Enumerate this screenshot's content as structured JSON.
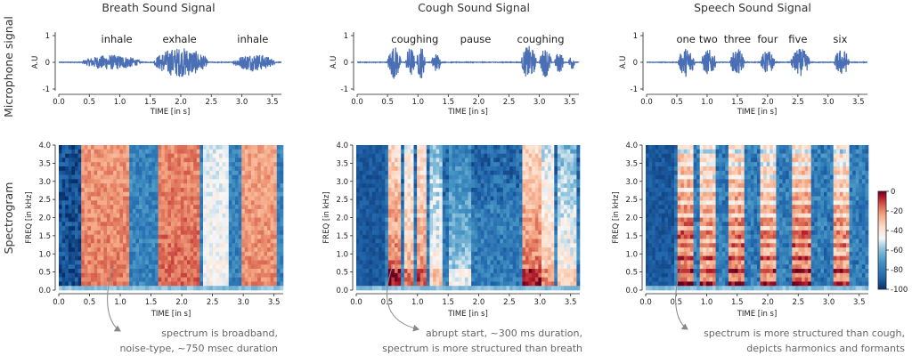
{
  "row_labels": [
    "Microphone signal",
    "Spectrogram"
  ],
  "chart_data": [
    {
      "type": "line",
      "title": "Breath Sound Signal",
      "xlabel": "TIME [in s]",
      "ylabel": "A.U",
      "xlim": [
        0,
        3.65
      ],
      "ylim": [
        -1,
        1
      ],
      "xticks": [
        "0.0",
        "0.5",
        "1.0",
        "1.5",
        "2.0",
        "2.5",
        "3.0",
        "3.5"
      ],
      "yticks": [
        "1",
        "0",
        "-1"
      ],
      "event_labels": [
        {
          "text": "inhale",
          "t": 0.95
        },
        {
          "text": "exhale",
          "t": 1.98
        },
        {
          "text": "inhale",
          "t": 3.18
        }
      ],
      "bursts": [
        {
          "start": 0.38,
          "end": 1.35,
          "amp": 0.28
        },
        {
          "start": 1.55,
          "end": 2.45,
          "amp": 0.55
        },
        {
          "start": 2.85,
          "end": 3.55,
          "amp": 0.32
        }
      ]
    },
    {
      "type": "line",
      "title": "Cough Sound Signal",
      "xlabel": "TIME [in s]",
      "ylabel": "A.U",
      "xlim": [
        0,
        3.65
      ],
      "ylim": [
        -1,
        1
      ],
      "xticks": [
        "0.0",
        "0.5",
        "1.0",
        "1.5",
        "2.0",
        "2.5",
        "3.0",
        "3.5"
      ],
      "yticks": [
        "1",
        "0",
        "-1"
      ],
      "event_labels": [
        {
          "text": "coughing",
          "t": 0.95
        },
        {
          "text": "pause",
          "t": 1.95
        },
        {
          "text": "coughing",
          "t": 3.02
        }
      ],
      "bursts": [
        {
          "start": 0.5,
          "end": 0.72,
          "amp": 0.62
        },
        {
          "start": 0.8,
          "end": 0.95,
          "amp": 0.58
        },
        {
          "start": 0.98,
          "end": 1.12,
          "amp": 0.62
        },
        {
          "start": 1.22,
          "end": 1.38,
          "amp": 0.35
        },
        {
          "start": 2.7,
          "end": 2.95,
          "amp": 0.62
        },
        {
          "start": 3.0,
          "end": 3.2,
          "amp": 0.55
        },
        {
          "start": 3.25,
          "end": 3.4,
          "amp": 0.4
        },
        {
          "start": 3.48,
          "end": 3.58,
          "amp": 0.3
        }
      ]
    },
    {
      "type": "line",
      "title": "Speech Sound Signal",
      "xlabel": "TIME [in s]",
      "ylabel": "A.U",
      "xlim": [
        0,
        3.65
      ],
      "ylim": [
        -1,
        1
      ],
      "xticks": [
        "0.0",
        "0.5",
        "1.0",
        "1.5",
        "2.0",
        "2.5",
        "3.0",
        "3.5"
      ],
      "yticks": [
        "1",
        "0",
        "-1"
      ],
      "event_labels": [
        {
          "text": "one",
          "t": 0.65
        },
        {
          "text": "two",
          "t": 1.02
        },
        {
          "text": "three",
          "t": 1.5
        },
        {
          "text": "four",
          "t": 2.0
        },
        {
          "text": "five",
          "t": 2.5
        },
        {
          "text": "six",
          "t": 3.2
        }
      ],
      "bursts": [
        {
          "start": 0.52,
          "end": 0.8,
          "amp": 0.55
        },
        {
          "start": 0.9,
          "end": 1.15,
          "amp": 0.48
        },
        {
          "start": 1.38,
          "end": 1.62,
          "amp": 0.5
        },
        {
          "start": 1.88,
          "end": 2.12,
          "amp": 0.45
        },
        {
          "start": 2.38,
          "end": 2.7,
          "amp": 0.52
        },
        {
          "start": 3.1,
          "end": 3.35,
          "amp": 0.5
        }
      ]
    },
    {
      "type": "heatmap",
      "xlabel": "TIME [in s]",
      "ylabel": "FREQ [in kHz]",
      "xlim": [
        0,
        3.65
      ],
      "ylim": [
        0,
        4
      ],
      "xticks": [
        "0.0",
        "0.5",
        "1.0",
        "1.5",
        "2.0",
        "2.5",
        "3.0",
        "3.5"
      ],
      "yticks": [
        "4.0",
        "3.5",
        "3.0",
        "2.5",
        "2.0",
        "1.5",
        "1.0",
        "0.5",
        "0.0"
      ],
      "annotation": [
        "spectrum is broadband,",
        "noise-type, ~750 msec duration"
      ],
      "active": [
        {
          "start": 0.38,
          "end": 1.15,
          "level": 0.82
        },
        {
          "start": 1.6,
          "end": 2.3,
          "level": 0.85
        },
        {
          "start": 2.35,
          "end": 2.75,
          "level": 0.55
        },
        {
          "start": 2.95,
          "end": 3.55,
          "level": 0.8
        }
      ],
      "style": "broadband"
    },
    {
      "type": "heatmap",
      "xlabel": "TIME [in s]",
      "ylabel": "FREQ [in kHz]",
      "xlim": [
        0,
        3.65
      ],
      "ylim": [
        0,
        4
      ],
      "xticks": [
        "0.0",
        "0.5",
        "1.0",
        "1.5",
        "2.0",
        "2.5",
        "3.0",
        "3.5"
      ],
      "yticks": [
        "4.0",
        "3.5",
        "3.0",
        "2.5",
        "2.0",
        "1.5",
        "1.0",
        "0.5",
        "0.0"
      ],
      "annotation": [
        "abrupt start, ~300 ms duration,",
        "spectrum is more structured than breath"
      ],
      "active": [
        {
          "start": 0.5,
          "end": 0.75,
          "level": 0.85
        },
        {
          "start": 0.8,
          "end": 0.95,
          "level": 0.75
        },
        {
          "start": 0.98,
          "end": 1.15,
          "level": 0.8
        },
        {
          "start": 1.2,
          "end": 1.4,
          "level": 0.6
        },
        {
          "start": 1.5,
          "end": 1.9,
          "level": 0.45
        },
        {
          "start": 2.7,
          "end": 3.0,
          "level": 0.85
        },
        {
          "start": 3.05,
          "end": 3.25,
          "level": 0.7
        },
        {
          "start": 3.3,
          "end": 3.6,
          "level": 0.6
        }
      ],
      "style": "structured"
    },
    {
      "type": "heatmap",
      "xlabel": "TIME [in s]",
      "ylabel": "FREQ [in kHz]",
      "xlim": [
        0,
        3.65
      ],
      "ylim": [
        0,
        4
      ],
      "xticks": [
        "0.0",
        "0.5",
        "1.0",
        "1.5",
        "2.0",
        "2.5",
        "3.0",
        "3.5"
      ],
      "yticks": [
        "4.0",
        "3.5",
        "3.0",
        "2.5",
        "2.0",
        "1.5",
        "1.0",
        "0.5",
        "0.0"
      ],
      "annotation": [
        "spectrum is more structured than cough,",
        "depicts harmonics and formants"
      ],
      "active": [
        {
          "start": 0.52,
          "end": 0.8,
          "level": 0.9
        },
        {
          "start": 0.9,
          "end": 1.15,
          "level": 0.85
        },
        {
          "start": 1.38,
          "end": 1.62,
          "level": 0.88
        },
        {
          "start": 1.88,
          "end": 2.12,
          "level": 0.85
        },
        {
          "start": 2.38,
          "end": 2.7,
          "level": 0.9
        },
        {
          "start": 3.1,
          "end": 3.35,
          "level": 0.85
        }
      ],
      "style": "harmonic"
    }
  ],
  "colorbar": {
    "ticks": [
      "0",
      "-20",
      "-40",
      "-60",
      "-80",
      "-100"
    ],
    "range": [
      -100,
      0
    ],
    "colors": [
      "#08306b",
      "#2166ac",
      "#4393c3",
      "#92c5de",
      "#d1e5f0",
      "#f7f7f7",
      "#fddbc7",
      "#f4a582",
      "#d6604d",
      "#b2182b",
      "#67001f"
    ]
  }
}
